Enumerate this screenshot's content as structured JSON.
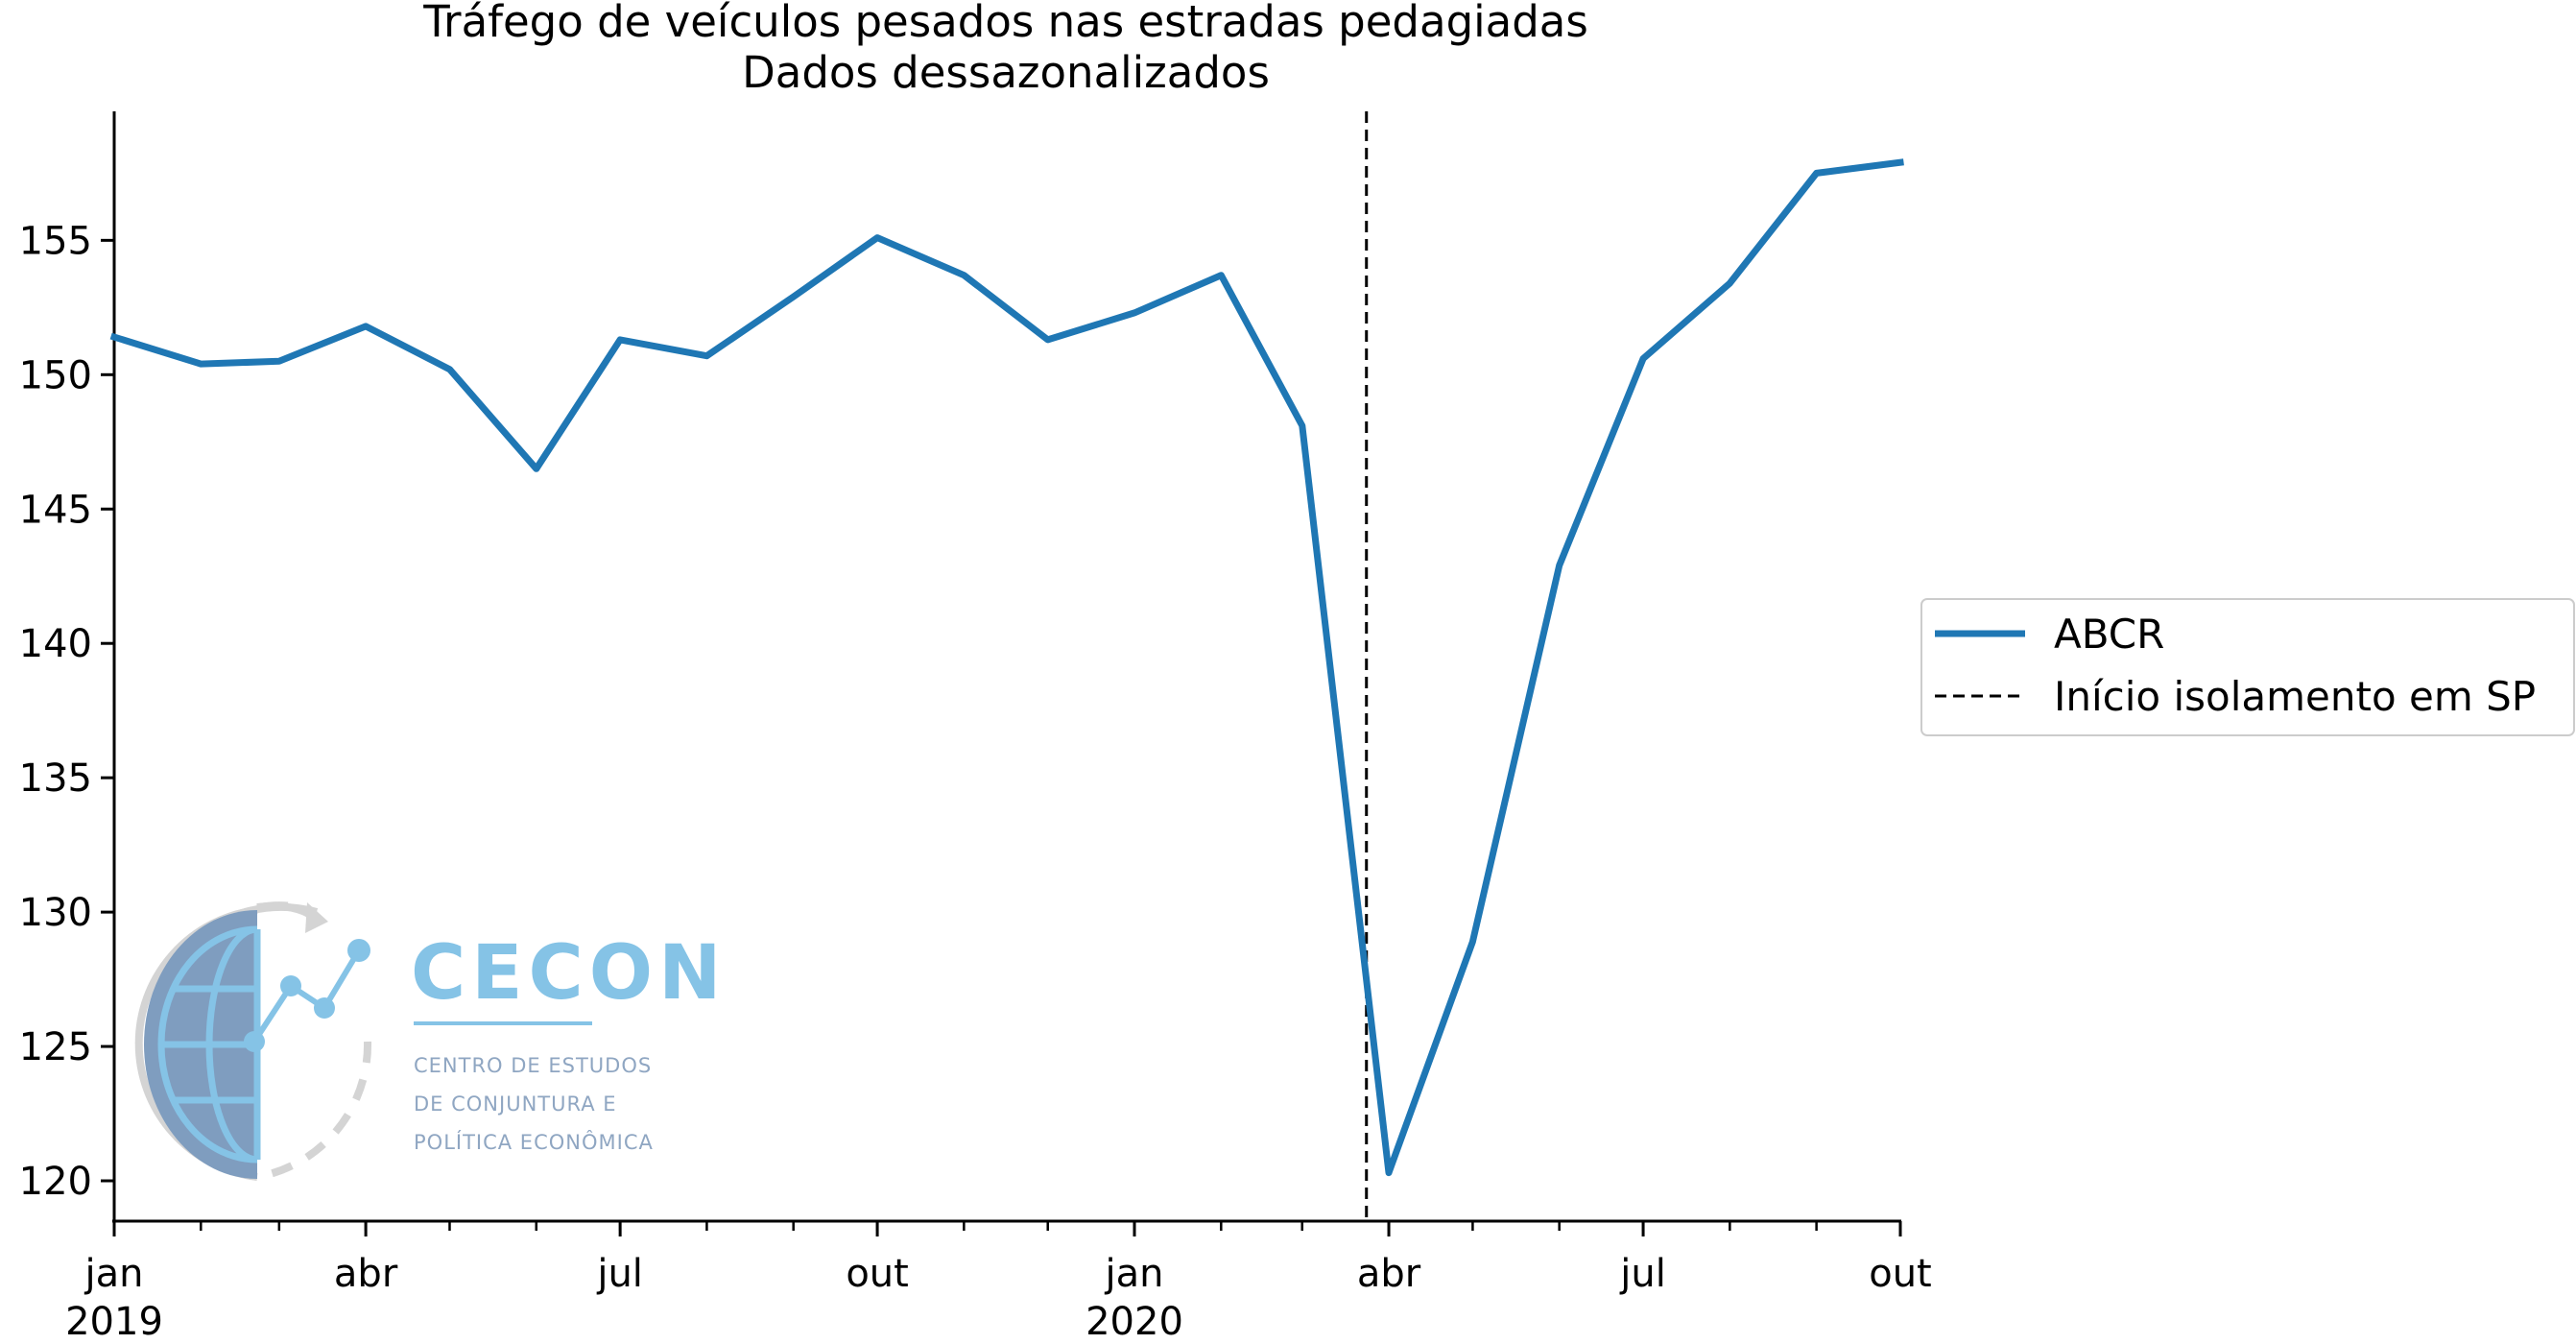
{
  "chart_data": {
    "type": "line",
    "title": "Tráfego de veículos pesados nas estradas pedagiadas",
    "subtitle": "Dados dessazonalizados",
    "x": [
      "2019-01",
      "2019-02",
      "2019-03",
      "2019-04",
      "2019-05",
      "2019-06",
      "2019-07",
      "2019-08",
      "2019-09",
      "2019-10",
      "2019-11",
      "2019-12",
      "2020-01",
      "2020-02",
      "2020-03",
      "2020-04",
      "2020-05",
      "2020-06",
      "2020-07",
      "2020-08",
      "2020-09",
      "2020-10"
    ],
    "series": [
      {
        "name": "ABCR",
        "color": "#1f77b4",
        "values": [
          151.4,
          150.4,
          150.5,
          151.8,
          150.2,
          146.5,
          151.3,
          150.7,
          152.9,
          155.1,
          153.7,
          151.3,
          152.3,
          153.7,
          148.1,
          120.3,
          128.9,
          142.9,
          150.6,
          153.4,
          157.5,
          157.9
        ]
      }
    ],
    "vline": {
      "x": "2020-03-24",
      "label": "Início isolamento em SP",
      "color": "#000000",
      "style": "dashed"
    },
    "ylim": [
      118.5,
      159.8
    ],
    "yticks": [
      120,
      125,
      130,
      135,
      140,
      145,
      150,
      155
    ],
    "xlim": [
      "2019-01-01",
      "2020-10-01"
    ],
    "xticks": [
      {
        "date": "2019-01-01",
        "label": "jan",
        "label2": "2019"
      },
      {
        "date": "2019-04-01",
        "label": "abr",
        "label2": ""
      },
      {
        "date": "2019-07-01",
        "label": "jul",
        "label2": ""
      },
      {
        "date": "2019-10-01",
        "label": "out",
        "label2": ""
      },
      {
        "date": "2020-01-01",
        "label": "jan",
        "label2": "2020"
      },
      {
        "date": "2020-04-01",
        "label": "abr",
        "label2": ""
      },
      {
        "date": "2020-07-01",
        "label": "jul",
        "label2": ""
      },
      {
        "date": "2020-10-01",
        "label": "out",
        "label2": ""
      }
    ],
    "legend": {
      "placement": "outside-right",
      "entries": [
        {
          "label": "ABCR",
          "style": "solid",
          "color": "#1f77b4"
        },
        {
          "label": "Início isolamento em SP",
          "style": "dashed",
          "color": "#000000"
        }
      ]
    },
    "grid": false
  },
  "logo": {
    "name": "CECON",
    "line1": "CENTRO DE ESTUDOS",
    "line2": "DE CONJUNTURA E",
    "line3": "POLÍTICA ECONÔMICA",
    "text_color": "#85c3e6",
    "small_text_color": "#8fa6c2",
    "globe_color": "#7f9dbf",
    "arc_color": "#d4d4d4"
  }
}
